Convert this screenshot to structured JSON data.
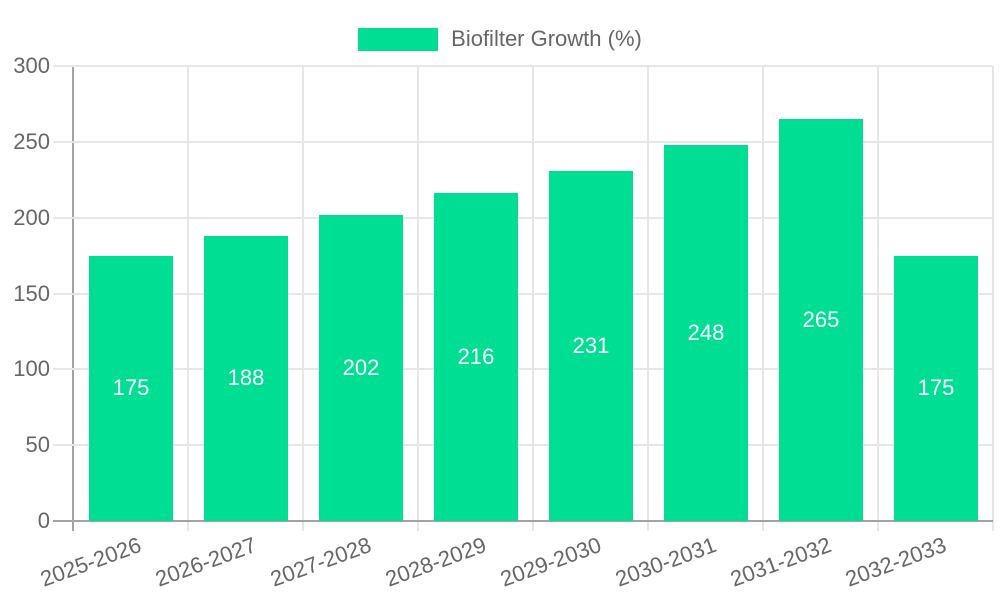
{
  "chart_data": {
    "type": "bar",
    "title": "",
    "legend": {
      "label": "Biofilter Growth (%)",
      "position": "top"
    },
    "categories": [
      "2025-2026",
      "2026-2027",
      "2027-2028",
      "2028-2029",
      "2029-2030",
      "2030-2031",
      "2031-2032",
      "2032-2033"
    ],
    "series": [
      {
        "name": "Biofilter Growth (%)",
        "values": [
          175,
          188,
          202,
          216,
          231,
          248,
          265,
          175
        ]
      }
    ],
    "data_labels": [
      "175",
      "188",
      "202",
      "216",
      "231",
      "248",
      "265",
      "175"
    ],
    "xlabel": "",
    "ylabel": "",
    "ylim": [
      0,
      300
    ],
    "yticks": [
      0,
      50,
      100,
      150,
      200,
      250,
      300
    ],
    "ytick_labels": [
      "0",
      "50",
      "100",
      "150",
      "200",
      "250",
      "300"
    ],
    "grid": true,
    "legend_position": "top-center",
    "x_label_rotation_deg": -20
  },
  "colors": {
    "bar_fill": "#00DE93",
    "grid_light": "#e6e6e6",
    "axis_dark": "#a3a3a3",
    "tick_text": "#666666",
    "legend_text": "#666666",
    "bar_label_text": "#ffffff",
    "background": "#ffffff"
  }
}
